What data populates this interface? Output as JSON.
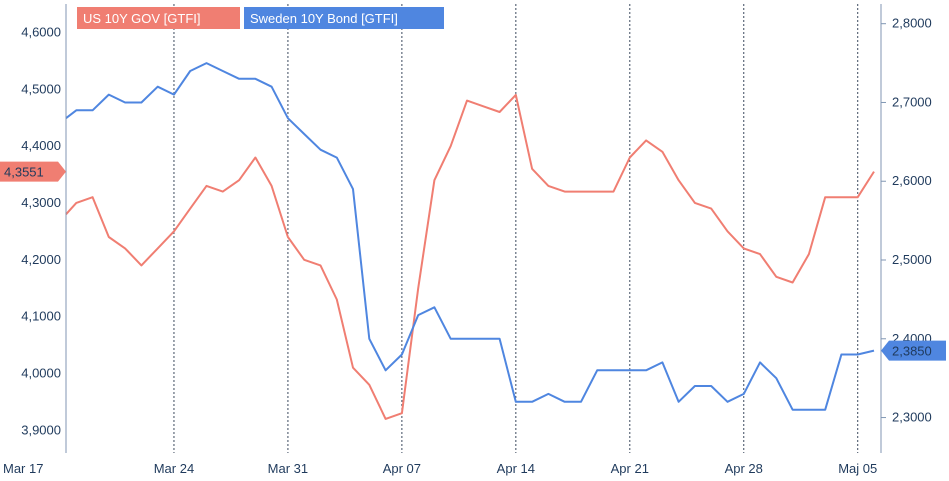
{
  "chart_data": {
    "type": "line",
    "legend_placement": "top-left",
    "grid": "vertical dotted",
    "x_ticks": [
      "Mar 17",
      "Mar 24",
      "Mar 31",
      "Apr 07",
      "Apr 14",
      "Apr 21",
      "Apr 28",
      "Maj 05"
    ],
    "x_range": [
      "Mar 17",
      "Maj 06"
    ],
    "left_axis": {
      "ticks": [
        "4,6000",
        "4,5000",
        "4,4000",
        "4,3000",
        "4,2000",
        "4,1000",
        "4,0000",
        "3,9000"
      ],
      "range": [
        3.86,
        4.65
      ]
    },
    "right_axis": {
      "ticks": [
        "2,8000",
        "2,7000",
        "2,6000",
        "2,5000",
        "2,4000",
        "2,3000"
      ],
      "range": [
        2.255,
        2.825
      ]
    },
    "series": [
      {
        "name": "US 10Y GOV [GTFI]",
        "axis": "left",
        "color": "#f07e72",
        "last_label": "4,3551",
        "points": [
          [
            "Mar 17",
            4.28
          ],
          [
            "Mar 18",
            4.3
          ],
          [
            "Mar 19",
            4.31
          ],
          [
            "Mar 20",
            4.24
          ],
          [
            "Mar 21",
            4.22
          ],
          [
            "Mar 22",
            4.19
          ],
          [
            "Mar 23",
            4.22
          ],
          [
            "Mar 24",
            4.25
          ],
          [
            "Mar 25",
            4.29
          ],
          [
            "Mar 26",
            4.33
          ],
          [
            "Mar 27",
            4.32
          ],
          [
            "Mar 28",
            4.34
          ],
          [
            "Mar 29",
            4.38
          ],
          [
            "Mar 30",
            4.33
          ],
          [
            "Mar 31",
            4.24
          ],
          [
            "Apr 01",
            4.2
          ],
          [
            "Apr 02",
            4.19
          ],
          [
            "Apr 03",
            4.13
          ],
          [
            "Apr 04",
            4.01
          ],
          [
            "Apr 05",
            3.98
          ],
          [
            "Apr 06",
            3.92
          ],
          [
            "Apr 07",
            3.93
          ],
          [
            "Apr 08",
            4.15
          ],
          [
            "Apr 09",
            4.34
          ],
          [
            "Apr 10",
            4.4
          ],
          [
            "Apr 11",
            4.48
          ],
          [
            "Apr 12",
            4.47
          ],
          [
            "Apr 13",
            4.46
          ],
          [
            "Apr 14",
            4.49
          ],
          [
            "Apr 15",
            4.36
          ],
          [
            "Apr 16",
            4.33
          ],
          [
            "Apr 17",
            4.32
          ],
          [
            "Apr 18",
            4.32
          ],
          [
            "Apr 19",
            4.32
          ],
          [
            "Apr 20",
            4.32
          ],
          [
            "Apr 21",
            4.38
          ],
          [
            "Apr 22",
            4.41
          ],
          [
            "Apr 23",
            4.39
          ],
          [
            "Apr 24",
            4.34
          ],
          [
            "Apr 25",
            4.3
          ],
          [
            "Apr 26",
            4.29
          ],
          [
            "Apr 27",
            4.25
          ],
          [
            "Apr 28",
            4.22
          ],
          [
            "Apr 29",
            4.21
          ],
          [
            "Apr 30",
            4.17
          ],
          [
            "Maj 01",
            4.16
          ],
          [
            "Maj 02",
            4.21
          ],
          [
            "Maj 03",
            4.31
          ],
          [
            "Maj 04",
            4.31
          ],
          [
            "Maj 05",
            4.31
          ],
          [
            "Maj 06",
            4.3551
          ]
        ]
      },
      {
        "name": "Sweden 10Y Bond [GTFI]",
        "axis": "right",
        "color": "#4f86e0",
        "last_label": "2,3850",
        "points": [
          [
            "Mar 17",
            2.68
          ],
          [
            "Mar 18",
            2.69
          ],
          [
            "Mar 19",
            2.69
          ],
          [
            "Mar 20",
            2.71
          ],
          [
            "Mar 21",
            2.7
          ],
          [
            "Mar 22",
            2.7
          ],
          [
            "Mar 23",
            2.72
          ],
          [
            "Mar 24",
            2.71
          ],
          [
            "Mar 25",
            2.74
          ],
          [
            "Mar 26",
            2.75
          ],
          [
            "Mar 27",
            2.74
          ],
          [
            "Mar 28",
            2.73
          ],
          [
            "Mar 29",
            2.73
          ],
          [
            "Mar 30",
            2.72
          ],
          [
            "Mar 31",
            2.68
          ],
          [
            "Apr 01",
            2.66
          ],
          [
            "Apr 02",
            2.64
          ],
          [
            "Apr 03",
            2.63
          ],
          [
            "Apr 04",
            2.59
          ],
          [
            "Apr 05",
            2.4
          ],
          [
            "Apr 06",
            2.36
          ],
          [
            "Apr 07",
            2.38
          ],
          [
            "Apr 08",
            2.43
          ],
          [
            "Apr 09",
            2.44
          ],
          [
            "Apr 10",
            2.4
          ],
          [
            "Apr 11",
            2.4
          ],
          [
            "Apr 12",
            2.4
          ],
          [
            "Apr 13",
            2.4
          ],
          [
            "Apr 14",
            2.32
          ],
          [
            "Apr 15",
            2.32
          ],
          [
            "Apr 16",
            2.33
          ],
          [
            "Apr 17",
            2.32
          ],
          [
            "Apr 18",
            2.32
          ],
          [
            "Apr 19",
            2.36
          ],
          [
            "Apr 20",
            2.36
          ],
          [
            "Apr 21",
            2.36
          ],
          [
            "Apr 22",
            2.36
          ],
          [
            "Apr 23",
            2.37
          ],
          [
            "Apr 24",
            2.32
          ],
          [
            "Apr 25",
            2.34
          ],
          [
            "Apr 26",
            2.34
          ],
          [
            "Apr 27",
            2.32
          ],
          [
            "Apr 28",
            2.33
          ],
          [
            "Apr 29",
            2.37
          ],
          [
            "Apr 30",
            2.35
          ],
          [
            "Maj 01",
            2.31
          ],
          [
            "Maj 02",
            2.31
          ],
          [
            "Maj 03",
            2.31
          ],
          [
            "Maj 04",
            2.38
          ],
          [
            "Maj 05",
            2.38
          ],
          [
            "Maj 06",
            2.385
          ]
        ]
      }
    ]
  }
}
